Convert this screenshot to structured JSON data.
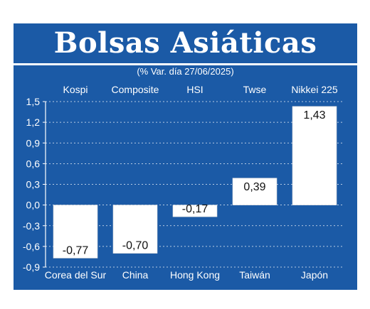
{
  "title": "Bolsas Asiáticas",
  "subtitle": "(% Var. día 27/06/2025)",
  "colors": {
    "background": "#1b5aa6",
    "bars": "#ffffff",
    "text": "#ffffff"
  },
  "chart_data": {
    "type": "bar",
    "title": "Bolsas Asiáticas",
    "subtitle": "(% Var. día 27/06/2025)",
    "indices": [
      "Kospi",
      "Composite",
      "HSI",
      "Twse",
      "Nikkei 225"
    ],
    "categories": [
      "Corea del Sur",
      "China",
      "Hong Kong",
      "Taiwán",
      "Japón"
    ],
    "values": [
      -0.77,
      -0.7,
      -0.17,
      0.39,
      1.43
    ],
    "value_labels": [
      "-0,77",
      "-0,70",
      "-0,17",
      "0,39",
      "1,43"
    ],
    "ylim": [
      -0.9,
      1.5
    ],
    "yticks": [
      "1,5",
      "1,2",
      "0,9",
      "0,6",
      "0,3",
      "0,0",
      "-0,3",
      "-0,6",
      "-0,9"
    ],
    "grid": true
  }
}
